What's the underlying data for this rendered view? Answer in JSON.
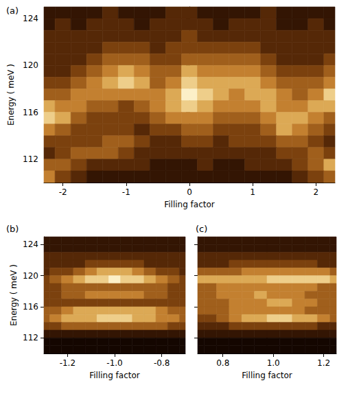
{
  "chart_data": [
    {
      "type": "heatmap",
      "title": "(a)",
      "x_label": "Filling factor",
      "y_label": "Energy ( meV )",
      "xlim": [
        -2.3,
        2.3
      ],
      "ylim": [
        110,
        125
      ],
      "xticks": [
        -2,
        -1,
        0,
        1,
        2
      ],
      "yticks": [
        112,
        116,
        120,
        124
      ],
      "x": [
        -2.25,
        -2,
        -1.75,
        -1.5,
        -1.25,
        -1,
        -0.75,
        -0.5,
        -0.25,
        0,
        0.25,
        0.5,
        0.75,
        1,
        1.25,
        1.5,
        1.75,
        2,
        2.25
      ],
      "y": [
        124.5,
        123.5,
        122.5,
        121.5,
        120.5,
        119.5,
        118.5,
        117.5,
        116.5,
        115.5,
        114.5,
        113.5,
        112.5,
        111.5,
        110.5
      ],
      "values": [
        [
          2,
          2,
          2,
          2,
          3,
          2,
          2,
          2,
          3,
          3,
          2,
          2,
          2,
          2,
          3,
          2,
          2,
          2,
          2
        ],
        [
          2,
          3,
          2,
          3,
          3,
          3,
          2,
          3,
          3,
          3,
          3,
          2,
          3,
          3,
          3,
          2,
          2,
          3,
          2
        ],
        [
          3,
          3,
          3,
          3,
          3,
          3,
          3,
          3,
          3,
          4,
          3,
          3,
          3,
          3,
          3,
          3,
          3,
          3,
          3
        ],
        [
          3,
          3,
          3,
          3,
          4,
          4,
          4,
          3,
          4,
          4,
          4,
          4,
          4,
          4,
          3,
          3,
          3,
          3,
          3
        ],
        [
          3,
          3,
          3,
          4,
          5,
          5,
          5,
          4,
          4,
          5,
          5,
          5,
          5,
          5,
          4,
          3,
          3,
          3,
          4
        ],
        [
          3,
          3,
          4,
          5,
          6,
          7,
          6,
          5,
          5,
          7,
          6,
          6,
          6,
          6,
          5,
          4,
          4,
          4,
          5
        ],
        [
          4,
          4,
          5,
          6,
          7,
          8,
          7,
          5,
          6,
          8,
          7,
          7,
          7,
          7,
          6,
          5,
          5,
          5,
          6
        ],
        [
          5,
          5,
          6,
          6,
          6,
          6,
          6,
          6,
          7,
          9,
          8,
          7,
          6,
          7,
          7,
          6,
          5,
          6,
          8
        ],
        [
          7,
          6,
          6,
          5,
          5,
          4,
          5,
          6,
          7,
          8,
          7,
          6,
          6,
          6,
          7,
          6,
          6,
          7,
          7
        ],
        [
          8,
          7,
          5,
          4,
          4,
          4,
          4,
          5,
          6,
          6,
          6,
          5,
          5,
          5,
          6,
          7,
          7,
          6,
          5
        ],
        [
          6,
          5,
          4,
          4,
          4,
          4,
          3,
          4,
          4,
          5,
          5,
          4,
          4,
          4,
          5,
          7,
          6,
          5,
          4
        ],
        [
          4,
          4,
          4,
          4,
          5,
          5,
          4,
          3,
          3,
          4,
          4,
          3,
          4,
          4,
          4,
          5,
          5,
          4,
          3
        ],
        [
          3,
          4,
          5,
          5,
          5,
          4,
          3,
          3,
          3,
          3,
          3,
          3,
          3,
          3,
          3,
          4,
          4,
          5,
          4
        ],
        [
          5,
          5,
          4,
          3,
          3,
          3,
          3,
          2,
          2,
          2,
          3,
          2,
          2,
          3,
          3,
          3,
          4,
          5,
          7
        ],
        [
          6,
          4,
          3,
          2,
          2,
          2,
          2,
          2,
          2,
          2,
          2,
          2,
          2,
          2,
          2,
          2,
          3,
          4,
          5
        ]
      ]
    },
    {
      "type": "heatmap",
      "title": "(b)",
      "x_label": "Filling factor",
      "y_label": "Energy ( meV )",
      "xlim": [
        -1.3,
        -0.7
      ],
      "ylim": [
        110,
        125
      ],
      "xticks": [
        -1.2,
        {
          "value": -1,
          "label": "-1.0"
        },
        -0.8
      ],
      "yticks": [
        112,
        116,
        120,
        124
      ],
      "x": [
        -1.3,
        -1.25,
        -1.2,
        -1.15,
        -1.1,
        -1.05,
        -1,
        -0.95,
        -0.9,
        -0.85,
        -0.8,
        -0.75,
        -0.7
      ],
      "y": [
        124.5,
        123.5,
        122.5,
        121.5,
        120.5,
        119.5,
        118.5,
        117.5,
        116.5,
        115.5,
        114.5,
        113.5,
        112.5,
        111.5,
        110.5
      ],
      "values": [
        [
          2,
          2,
          2,
          2,
          2,
          2,
          2,
          2,
          2,
          2,
          2,
          2,
          2
        ],
        [
          2,
          2,
          2,
          2,
          2,
          2,
          2,
          2,
          2,
          2,
          2,
          2,
          2
        ],
        [
          3,
          3,
          3,
          3,
          3,
          3,
          3,
          3,
          3,
          3,
          3,
          3,
          3
        ],
        [
          3,
          3,
          3,
          3,
          4,
          4,
          4,
          4,
          4,
          3,
          3,
          3,
          3
        ],
        [
          3,
          4,
          4,
          5,
          6,
          7,
          7,
          7,
          6,
          5,
          4,
          4,
          3
        ],
        [
          4,
          5,
          6,
          7,
          8,
          8,
          9,
          8,
          8,
          7,
          6,
          5,
          4
        ],
        [
          4,
          4,
          5,
          5,
          5,
          5,
          5,
          5,
          5,
          5,
          5,
          4,
          4
        ],
        [
          4,
          4,
          5,
          5,
          6,
          6,
          6,
          6,
          6,
          5,
          5,
          4,
          4
        ],
        [
          4,
          4,
          4,
          4,
          4,
          4,
          4,
          4,
          4,
          4,
          4,
          4,
          4
        ],
        [
          5,
          5,
          6,
          7,
          7,
          7,
          7,
          7,
          7,
          7,
          6,
          5,
          5
        ],
        [
          5,
          6,
          7,
          7,
          7,
          8,
          8,
          8,
          7,
          7,
          6,
          6,
          5
        ],
        [
          4,
          4,
          5,
          5,
          5,
          5,
          5,
          5,
          5,
          5,
          5,
          4,
          4
        ],
        [
          2,
          2,
          2,
          2,
          2,
          2,
          2,
          2,
          2,
          2,
          2,
          2,
          2
        ],
        [
          1,
          1,
          1,
          1,
          1,
          1,
          1,
          1,
          1,
          1,
          1,
          1,
          1
        ],
        [
          1,
          1,
          1,
          1,
          1,
          1,
          1,
          1,
          1,
          1,
          1,
          1,
          1
        ]
      ]
    },
    {
      "type": "heatmap",
      "title": "(c)",
      "x_label": "Filling factor",
      "tick_labels": "x",
      "xlim": [
        0.7,
        1.25
      ],
      "ylim": [
        110,
        125
      ],
      "xticks": [
        0.8,
        {
          "value": 1,
          "label": "1.0"
        },
        1.2
      ],
      "yticks": [
        112,
        116,
        120,
        124
      ],
      "x": [
        0.7,
        0.75,
        0.8,
        0.85,
        0.9,
        0.95,
        1,
        1.05,
        1.1,
        1.15,
        1.2,
        1.25
      ],
      "y": [
        124.5,
        123.5,
        122.5,
        121.5,
        120.5,
        119.5,
        118.5,
        117.5,
        116.5,
        115.5,
        114.5,
        113.5,
        112.5,
        111.5,
        110.5
      ],
      "values": [
        [
          2,
          2,
          2,
          2,
          2,
          2,
          2,
          2,
          2,
          2,
          2,
          2
        ],
        [
          2,
          2,
          2,
          2,
          2,
          2,
          2,
          2,
          2,
          2,
          2,
          2
        ],
        [
          3,
          3,
          3,
          3,
          3,
          3,
          3,
          3,
          3,
          3,
          3,
          3
        ],
        [
          3,
          3,
          3,
          4,
          4,
          4,
          4,
          4,
          4,
          4,
          3,
          3
        ],
        [
          5,
          5,
          5,
          5,
          6,
          6,
          6,
          6,
          6,
          6,
          6,
          5
        ],
        [
          7,
          7,
          7,
          7,
          7,
          7,
          8,
          8,
          8,
          8,
          8,
          7
        ],
        [
          5,
          5,
          6,
          6,
          6,
          6,
          6,
          6,
          6,
          6,
          5,
          5
        ],
        [
          5,
          5,
          6,
          6,
          6,
          7,
          6,
          6,
          6,
          5,
          5,
          5
        ],
        [
          5,
          5,
          5,
          6,
          6,
          6,
          7,
          7,
          6,
          6,
          5,
          5
        ],
        [
          5,
          5,
          5,
          6,
          6,
          6,
          6,
          6,
          6,
          5,
          5,
          5
        ],
        [
          4,
          4,
          5,
          6,
          7,
          7,
          8,
          8,
          7,
          7,
          6,
          5
        ],
        [
          3,
          3,
          3,
          4,
          4,
          4,
          4,
          4,
          4,
          4,
          3,
          3
        ],
        [
          2,
          2,
          2,
          2,
          2,
          2,
          2,
          2,
          2,
          2,
          2,
          2
        ],
        [
          1,
          1,
          1,
          1,
          1,
          1,
          1,
          1,
          1,
          1,
          1,
          1
        ],
        [
          1,
          1,
          1,
          1,
          1,
          1,
          1,
          1,
          1,
          1,
          1,
          1
        ]
      ]
    }
  ]
}
